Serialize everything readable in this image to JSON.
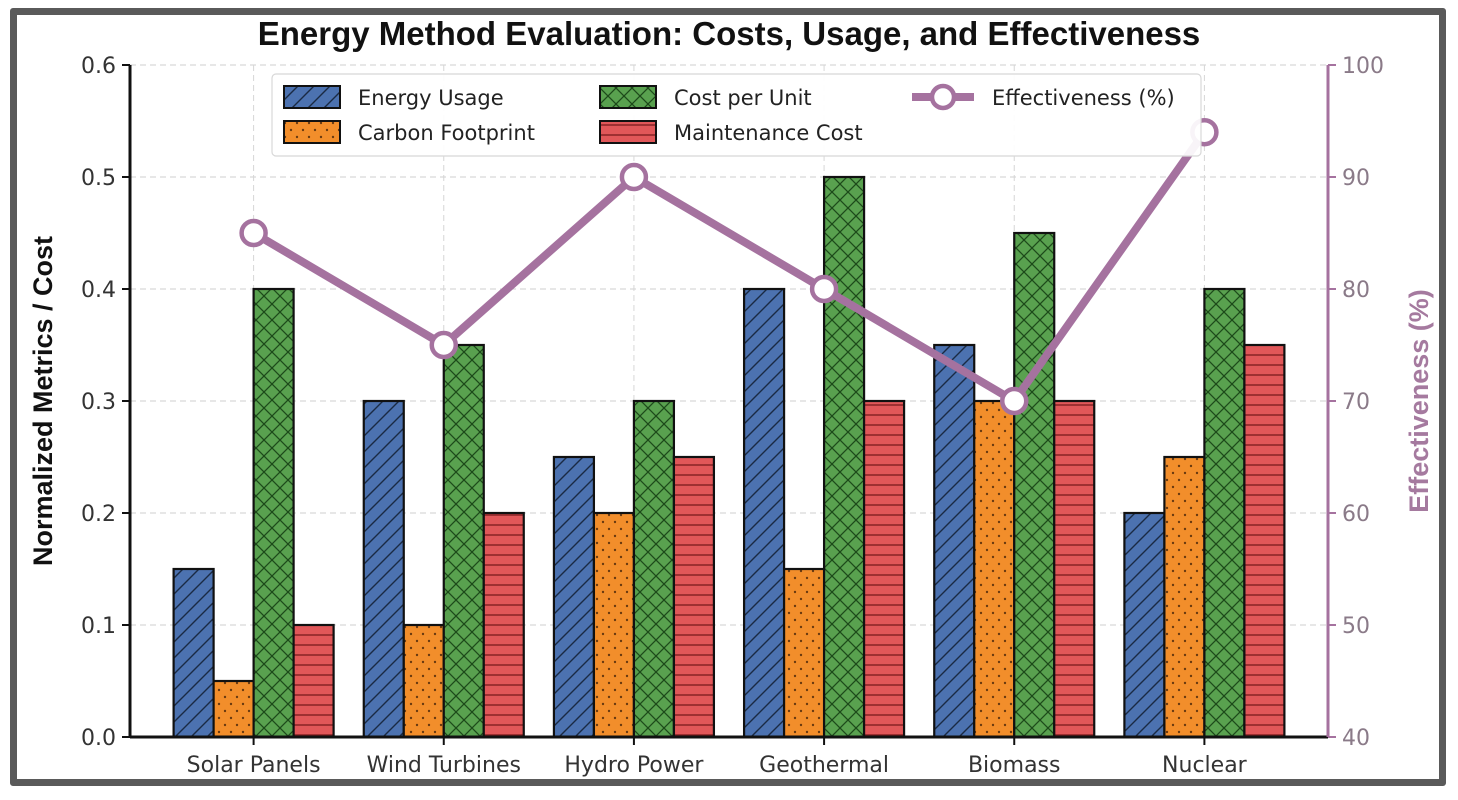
{
  "chart_data": {
    "type": "bar",
    "title": "Energy Method Evaluation: Costs, Usage, and Effectiveness",
    "xlabel": "",
    "ylabel": "Normalized Metrics / Cost",
    "y2label": "Effectiveness (%)",
    "ylim": [
      0,
      0.6
    ],
    "y2lim": [
      40,
      100
    ],
    "yticks": [
      "0.0",
      "0.1",
      "0.2",
      "0.3",
      "0.4",
      "0.5",
      "0.6"
    ],
    "y2ticks": [
      "40",
      "50",
      "60",
      "70",
      "80",
      "90",
      "100"
    ],
    "grid": true,
    "legend_position": "top-center",
    "categories": [
      "Solar Panels",
      "Wind Turbines",
      "Hydro Power",
      "Geothermal",
      "Biomass",
      "Nuclear"
    ],
    "series": [
      {
        "name": "Energy Usage",
        "type": "bar",
        "axis": "left",
        "color": "#4c72b0",
        "hatch": "diagonal",
        "values": [
          0.15,
          0.3,
          0.25,
          0.4,
          0.35,
          0.2
        ]
      },
      {
        "name": "Carbon Footprint",
        "type": "bar",
        "axis": "left",
        "color": "#f28e2b",
        "hatch": "dots",
        "values": [
          0.05,
          0.1,
          0.2,
          0.15,
          0.3,
          0.25
        ]
      },
      {
        "name": "Cost per Unit",
        "type": "bar",
        "axis": "left",
        "color": "#59a14f",
        "hatch": "crosshatch",
        "values": [
          0.4,
          0.35,
          0.3,
          0.5,
          0.45,
          0.4
        ]
      },
      {
        "name": "Maintenance Cost",
        "type": "bar",
        "axis": "left",
        "color": "#e15759",
        "hatch": "horizontal",
        "values": [
          0.1,
          0.2,
          0.25,
          0.3,
          0.3,
          0.35
        ]
      },
      {
        "name": "Effectiveness (%)",
        "type": "line",
        "axis": "right",
        "color": "#a5729f",
        "marker": "open-circle",
        "values": [
          85,
          75,
          90,
          80,
          70,
          94
        ]
      }
    ]
  }
}
